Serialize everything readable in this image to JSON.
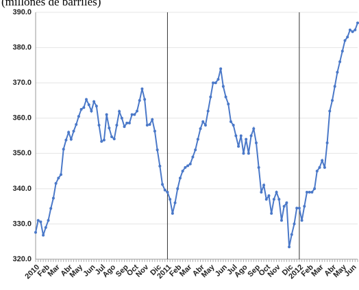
{
  "chart_data": {
    "type": "line",
    "title": "(millones de barriles)",
    "x": [
      0,
      1,
      2,
      3,
      4,
      5,
      6,
      7,
      8,
      9,
      10,
      11,
      12,
      13,
      14,
      15,
      16,
      17,
      18,
      19,
      20,
      21,
      22,
      23,
      24,
      25,
      26,
      27,
      28,
      29,
      30,
      31,
      32,
      33,
      34,
      35,
      36,
      37,
      38,
      39,
      40,
      41,
      42,
      43,
      44,
      45,
      46,
      47,
      48,
      49,
      50,
      51,
      52,
      53,
      54,
      55,
      56,
      57,
      58,
      59,
      60,
      61,
      62,
      63,
      64,
      65,
      66,
      67,
      68,
      69,
      70,
      71,
      72,
      73,
      74,
      75,
      76,
      77,
      78,
      79,
      80,
      81,
      82,
      83,
      84,
      85,
      86,
      87,
      88,
      89,
      90,
      91,
      92,
      93,
      94,
      95,
      96,
      97,
      98,
      99,
      100,
      101,
      102,
      103,
      104,
      105,
      106,
      107,
      108,
      109,
      110,
      111,
      112,
      113,
      114,
      115,
      116,
      117,
      118,
      119,
      120,
      121,
      122,
      123,
      124,
      125,
      126,
      127
    ],
    "series": [
      {
        "color": "#4a78c8",
        "values": [
          327.6,
          331,
          330.6,
          326.8,
          329,
          331,
          334.4,
          337.3,
          341.5,
          343,
          344,
          351.2,
          353.8,
          356,
          354,
          356.3,
          358.2,
          360.5,
          362.5,
          363,
          365.3,
          363.8,
          362,
          364.7,
          363.4,
          358,
          353.4,
          353.8,
          361,
          357.2,
          354.7,
          354.1,
          358,
          361.9,
          360,
          357.6,
          358.6,
          358.6,
          361,
          361,
          362,
          365,
          368.3,
          365.3,
          358,
          358.2,
          359.6,
          356.3,
          351,
          346.4,
          341.2,
          339.6,
          339,
          337,
          333,
          336,
          340,
          343,
          345,
          346,
          346.5,
          347,
          349,
          351,
          354,
          357,
          359,
          358,
          362,
          366,
          370,
          370,
          371,
          374,
          369,
          366,
          364,
          359,
          358,
          355,
          352,
          355,
          350,
          354,
          350,
          355,
          357,
          353,
          346,
          339,
          341,
          337,
          338,
          333,
          337,
          339,
          337,
          331,
          335,
          336,
          323.5,
          327,
          330,
          334.5,
          334.5,
          331,
          335,
          339,
          339,
          339,
          340,
          345,
          346,
          348,
          346,
          353,
          362,
          365,
          369,
          373,
          376,
          379,
          382,
          383,
          385,
          384.5,
          385,
          387
        ]
      }
    ],
    "xlim": [
      0,
      127
    ],
    "xticks": [
      {
        "value": 0,
        "label": "2010"
      },
      {
        "value": 4,
        "label": "Feb"
      },
      {
        "value": 8,
        "label": "Mar"
      },
      {
        "value": 13,
        "label": "Abr"
      },
      {
        "value": 17,
        "label": "May"
      },
      {
        "value": 22,
        "label": "Jun"
      },
      {
        "value": 26,
        "label": "Jul"
      },
      {
        "value": 30,
        "label": "Ago"
      },
      {
        "value": 35,
        "label": "Sep"
      },
      {
        "value": 39,
        "label": "Oct"
      },
      {
        "value": 43,
        "label": "Nov"
      },
      {
        "value": 48,
        "label": "Dic"
      },
      {
        "value": 52,
        "label": "2011"
      },
      {
        "value": 56,
        "label": "Feb"
      },
      {
        "value": 60,
        "label": "Mar"
      },
      {
        "value": 65,
        "label": "Abr"
      },
      {
        "value": 69,
        "label": "May"
      },
      {
        "value": 74,
        "label": "Jun"
      },
      {
        "value": 78,
        "label": "Jul"
      },
      {
        "value": 82,
        "label": "Ago"
      },
      {
        "value": 87,
        "label": "Sep"
      },
      {
        "value": 91,
        "label": "Oct"
      },
      {
        "value": 95,
        "label": "Nov"
      },
      {
        "value": 100,
        "label": "Dic"
      },
      {
        "value": 104,
        "label": "2012"
      },
      {
        "value": 108,
        "label": "Feb"
      },
      {
        "value": 112,
        "label": "Mar"
      },
      {
        "value": 117,
        "label": "Abr"
      },
      {
        "value": 121,
        "label": "May"
      },
      {
        "value": 125,
        "label": "Jun"
      }
    ],
    "separators": [
      52,
      104
    ],
    "ylim": [
      320,
      390
    ],
    "yticks": [
      {
        "value": 320,
        "label": "320.0"
      },
      {
        "value": 330,
        "label": "330.0"
      },
      {
        "value": 340,
        "label": "340.0"
      },
      {
        "value": 350,
        "label": "350.0"
      },
      {
        "value": 360,
        "label": "360.0"
      },
      {
        "value": 370,
        "label": "370.0"
      },
      {
        "value": 380,
        "label": "380.0"
      },
      {
        "value": 390,
        "label": "390.0"
      }
    ],
    "grid": true
  }
}
